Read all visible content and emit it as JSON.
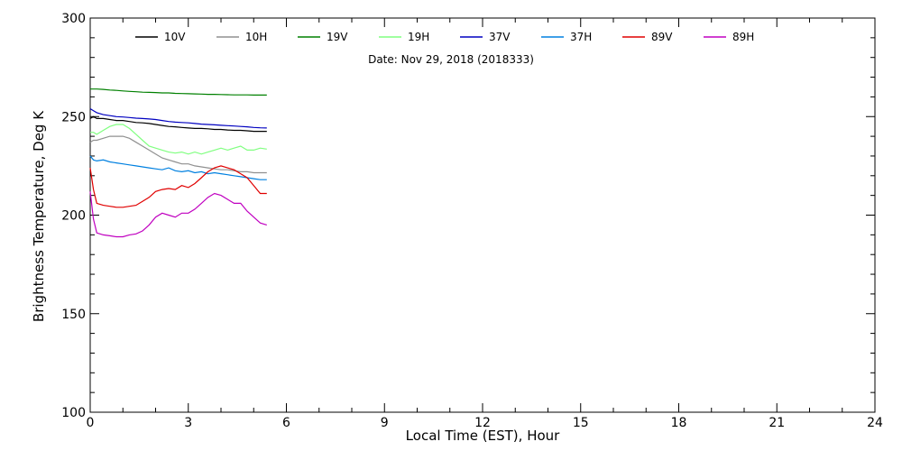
{
  "chart_data": {
    "type": "line",
    "annotation": "Date: Nov 29, 2018 (2018333)",
    "xlabel": "Local Time (EST), Hour",
    "ylabel": "Brightness Temperature, Deg K",
    "xlim": [
      0,
      24
    ],
    "ylim": [
      100,
      300
    ],
    "xticks": [
      "0",
      "3",
      "6",
      "9",
      "12",
      "15",
      "18",
      "21",
      "24"
    ],
    "yticks": [
      "100",
      "150",
      "200",
      "250",
      "300"
    ],
    "grid": false,
    "legend_position": "top",
    "x": [
      0,
      0.1,
      0.2,
      0.4,
      0.6,
      0.8,
      1.0,
      1.2,
      1.4,
      1.6,
      1.8,
      2.0,
      2.2,
      2.4,
      2.6,
      2.8,
      3.0,
      3.2,
      3.4,
      3.6,
      3.8,
      4.0,
      4.2,
      4.4,
      4.6,
      4.8,
      5.0,
      5.2,
      5.4
    ],
    "series": [
      {
        "name": "10V",
        "color": "#000000",
        "values": [
          249,
          250,
          249,
          249,
          248.5,
          248,
          248,
          247.5,
          247,
          246.8,
          246.5,
          246,
          245.5,
          245,
          244.8,
          244.5,
          244.2,
          244,
          244,
          243.8,
          243.5,
          243.5,
          243.2,
          243,
          243,
          242.8,
          242.5,
          242.5,
          242.5
        ]
      },
      {
        "name": "10H",
        "color": "#909090",
        "values": [
          237,
          238,
          238,
          239,
          240,
          240,
          240,
          239,
          237,
          235,
          233,
          231,
          229,
          228,
          227,
          226,
          226,
          225,
          224.5,
          224,
          223.5,
          223,
          223,
          222.5,
          222,
          222,
          221.5,
          221.5,
          221.5
        ]
      },
      {
        "name": "19V",
        "color": "#008000",
        "values": [
          264,
          264,
          264,
          263.8,
          263.5,
          263.3,
          263,
          262.8,
          262.6,
          262.4,
          262.3,
          262.2,
          262,
          262,
          261.8,
          261.7,
          261.6,
          261.5,
          261.4,
          261.3,
          261.3,
          261.2,
          261.1,
          261,
          261,
          261,
          260.9,
          260.9,
          260.9
        ]
      },
      {
        "name": "19H",
        "color": "#80ff80",
        "values": [
          242,
          242,
          241,
          243,
          245,
          246,
          246,
          244,
          241,
          238,
          235,
          234,
          233,
          232,
          231.5,
          232,
          231,
          232,
          231,
          232,
          233,
          234,
          233,
          234,
          235,
          233,
          233,
          234,
          233.5
        ]
      },
      {
        "name": "37V",
        "color": "#0000c0",
        "values": [
          254,
          253,
          252,
          251,
          250.5,
          250,
          249.8,
          249.5,
          249.2,
          249,
          248.8,
          248.5,
          248,
          247.5,
          247.2,
          247,
          246.8,
          246.5,
          246.2,
          246,
          245.8,
          245.6,
          245.4,
          245.2,
          245,
          244.8,
          244.5,
          244.3,
          244.2
        ]
      },
      {
        "name": "37H",
        "color": "#0080e0",
        "values": [
          230,
          228,
          227.5,
          228,
          227,
          226.5,
          226,
          225.5,
          225,
          224.5,
          224,
          223.5,
          223,
          224,
          222.5,
          222,
          222.5,
          221.5,
          222,
          221,
          221.5,
          221,
          220.5,
          220,
          219.5,
          219,
          218.5,
          218,
          218
        ]
      },
      {
        "name": "89V",
        "color": "#e00000",
        "values": [
          224,
          213,
          206,
          205,
          204.5,
          204,
          204,
          204.5,
          205,
          207,
          209,
          212,
          213,
          213.5,
          213,
          215,
          214,
          216,
          219,
          222,
          224,
          225,
          224,
          223,
          221,
          219,
          215,
          211,
          211
        ]
      },
      {
        "name": "89H",
        "color": "#c000c0",
        "values": [
          212,
          198,
          191,
          190,
          189.5,
          189,
          189,
          190,
          190.5,
          192,
          195,
          199,
          201,
          200,
          199,
          201,
          201,
          203,
          206,
          209,
          211,
          210,
          208,
          206,
          206,
          202,
          199,
          196,
          195
        ]
      }
    ]
  }
}
